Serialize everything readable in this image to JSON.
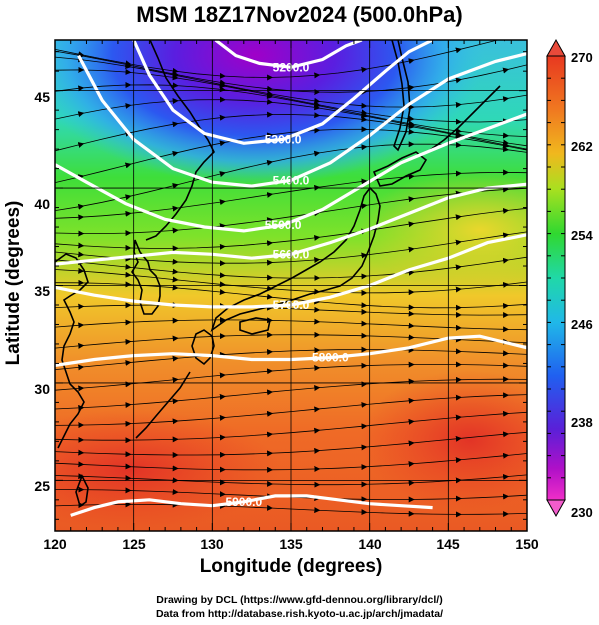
{
  "title": "MSM 18Z17Nov2024 (500.0hPa)",
  "credits": {
    "drawing": "Drawing by DCL (https://www.gfd-dennou.org/library/dcl/)",
    "data": "Data from http://database.rish.kyoto-u.ac.jp/arch/jmadata/"
  },
  "chart_data": {
    "type": "heatmap",
    "xlabel": "Longitude (degrees)",
    "ylabel": "Latitude  (degrees)",
    "xlim": [
      120,
      150
    ],
    "ylim": [
      22.4,
      47.6
    ],
    "x_ticks": [
      "120",
      "125",
      "130",
      "135",
      "140",
      "145",
      "150"
    ],
    "y_ticks": [
      "25",
      "30",
      "35",
      "40",
      "45"
    ],
    "x_tick_values": [
      120,
      125,
      130,
      135,
      140,
      145,
      150
    ],
    "y_tick_values": [
      25,
      30,
      35,
      40,
      45
    ],
    "grid": true,
    "colorbar": {
      "min": 230,
      "max": 270,
      "tick_labels": [
        "270",
        "262",
        "254",
        "246",
        "238",
        "230"
      ],
      "tick_values": [
        270,
        262,
        254,
        246,
        238,
        230
      ]
    },
    "contours": [
      {
        "label": "5200.0",
        "value": 5200,
        "points": [
          [
            130.2,
            47.6
          ],
          [
            131.5,
            46.8
          ],
          [
            133,
            46.4
          ],
          [
            135,
            46.2
          ],
          [
            137,
            46.6
          ],
          [
            138.5,
            47.3
          ],
          [
            139.5,
            47.6
          ]
        ]
      },
      {
        "label": "5300.0",
        "value": 5300,
        "points": [
          [
            125,
            47.6
          ],
          [
            126,
            45.8
          ],
          [
            127.5,
            44
          ],
          [
            129.5,
            42.8
          ],
          [
            132,
            42.3
          ],
          [
            134.5,
            42.5
          ],
          [
            137,
            43.3
          ],
          [
            139,
            44.6
          ],
          [
            141,
            46
          ],
          [
            142.5,
            47
          ],
          [
            144,
            47.6
          ]
        ]
      },
      {
        "label": "5400.0",
        "value": 5400,
        "points": [
          [
            121.5,
            46.8
          ],
          [
            123,
            44.5
          ],
          [
            125,
            42.5
          ],
          [
            127.5,
            41
          ],
          [
            130,
            40.3
          ],
          [
            132.5,
            40.1
          ],
          [
            135,
            40.4
          ],
          [
            137.5,
            41.3
          ],
          [
            140,
            42.7
          ],
          [
            142.5,
            44.3
          ],
          [
            145,
            45.6
          ],
          [
            148,
            46.5
          ],
          [
            150,
            46.9
          ]
        ]
      },
      {
        "label": "5500.0",
        "value": 5500,
        "points": [
          [
            120,
            41.2
          ],
          [
            122,
            40.3
          ],
          [
            124.5,
            39.2
          ],
          [
            127,
            38.4
          ],
          [
            129.5,
            38
          ],
          [
            132,
            37.8
          ],
          [
            134.5,
            38.1
          ],
          [
            137,
            38.9
          ],
          [
            139.5,
            40.1
          ],
          [
            142,
            41.3
          ],
          [
            145,
            42.3
          ],
          [
            148,
            43.2
          ],
          [
            150,
            43.8
          ]
        ]
      },
      {
        "label": "5600.0",
        "value": 5600,
        "points": [
          [
            120,
            36.1
          ],
          [
            122.5,
            36.3
          ],
          [
            125,
            36.5
          ],
          [
            127.5,
            36.7
          ],
          [
            130,
            36.6
          ],
          [
            132.5,
            36.4
          ],
          [
            135,
            36.6
          ],
          [
            137.5,
            37.2
          ],
          [
            140,
            37.9
          ],
          [
            142.5,
            38.7
          ],
          [
            145,
            39.5
          ],
          [
            147.5,
            40
          ],
          [
            150,
            40.2
          ]
        ]
      },
      {
        "label": "5700.0",
        "value": 5700,
        "points": [
          [
            120,
            34.9
          ],
          [
            122.5,
            34.5
          ],
          [
            125,
            34.2
          ],
          [
            127.5,
            34
          ],
          [
            130,
            33.9
          ],
          [
            132.5,
            33.9
          ],
          [
            135,
            34
          ],
          [
            137.5,
            34.4
          ],
          [
            140,
            35
          ],
          [
            142.5,
            35.8
          ],
          [
            145,
            36.4
          ],
          [
            147.5,
            37.2
          ],
          [
            150,
            37.6
          ]
        ]
      },
      {
        "label": "5800.0",
        "value": 5800,
        "points": [
          [
            120,
            30.9
          ],
          [
            122.5,
            31.2
          ],
          [
            125,
            31.4
          ],
          [
            127.5,
            31.5
          ],
          [
            130,
            31.4
          ],
          [
            132.5,
            31.2
          ],
          [
            135,
            31.2
          ],
          [
            137.5,
            31.3
          ],
          [
            140,
            31.5
          ],
          [
            142.5,
            31.8
          ],
          [
            145,
            32.3
          ],
          [
            147,
            32.4
          ],
          [
            148.5,
            32.1
          ],
          [
            150,
            31.8
          ]
        ]
      },
      {
        "label": "5900.0",
        "value": 5900,
        "points": [
          [
            121,
            23.2
          ],
          [
            122.5,
            23.6
          ],
          [
            124,
            23.9
          ],
          [
            126,
            24
          ],
          [
            128,
            23.8
          ],
          [
            130,
            23.7
          ],
          [
            132,
            23.9
          ],
          [
            134,
            24.2
          ],
          [
            136,
            24.2
          ],
          [
            138,
            24
          ],
          [
            140,
            23.8
          ],
          [
            142,
            23.7
          ],
          [
            144,
            23.6
          ]
        ]
      }
    ]
  }
}
